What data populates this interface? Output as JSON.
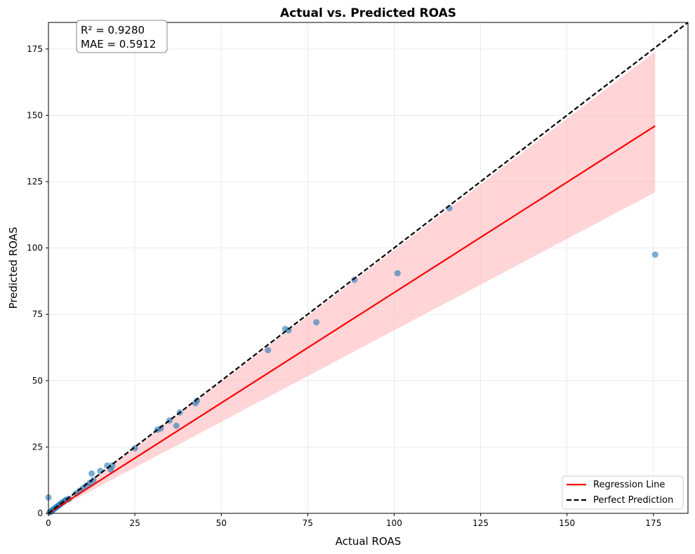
{
  "chart_data": {
    "type": "scatter",
    "title": "Actual vs. Predicted ROAS",
    "xlabel": "Actual ROAS",
    "ylabel": "Predicted ROAS",
    "xlim": [
      0,
      185
    ],
    "ylim": [
      0,
      185
    ],
    "xticks": [
      0,
      25,
      50,
      75,
      100,
      125,
      150,
      175
    ],
    "yticks": [
      0,
      25,
      50,
      75,
      100,
      125,
      150,
      175
    ],
    "grid": true,
    "legend_position": "lower-right",
    "stats": {
      "r2": "R² = 0.9280",
      "mae": "MAE = 0.5912"
    },
    "points": {
      "name": "",
      "color": "#1f77b4",
      "x": [
        0.0,
        0.3,
        0.6,
        0.9,
        1.2,
        1.5,
        1.8,
        2.1,
        2.4,
        2.7,
        3.0,
        3.3,
        3.6,
        3.9,
        4.2,
        4.5,
        5.0,
        5.5,
        6.0,
        8.0,
        9.0,
        10.0,
        11.0,
        12.0,
        12.5,
        13.0,
        15.0,
        17.0,
        18.0,
        18.5,
        25.0,
        31.5,
        32.5,
        35.0,
        37.0,
        38.0,
        42.5,
        43.0,
        63.5,
        68.5,
        69.5,
        77.5,
        88.5,
        101.0,
        116.0,
        175.5
      ],
      "y": [
        6.0,
        0.3,
        0.6,
        0.9,
        1.2,
        1.5,
        1.8,
        2.1,
        2.4,
        2.7,
        3.0,
        3.3,
        3.6,
        3.9,
        4.2,
        4.5,
        5.0,
        5.2,
        5.5,
        7.5,
        8.5,
        9.5,
        10.5,
        11.5,
        15.0,
        12.5,
        16.0,
        18.0,
        16.5,
        18.0,
        24.5,
        31.5,
        32.0,
        35.0,
        33.0,
        38.0,
        41.5,
        42.5,
        61.5,
        69.5,
        69.0,
        72.0,
        88.0,
        90.5,
        115.0,
        97.5
      ]
    },
    "regression": {
      "name": "Regression Line",
      "color": "#ff0000",
      "x": [
        0,
        175.5
      ],
      "y": [
        0,
        146
      ]
    },
    "confidence_band": {
      "color": "#ffb3b8",
      "x": [
        0,
        175.5
      ],
      "upper": [
        0,
        174
      ],
      "lower": [
        0,
        121
      ]
    },
    "perfect": {
      "name": "Perfect Prediction",
      "color": "#000000",
      "x": [
        0,
        185
      ],
      "y": [
        0,
        185
      ]
    }
  }
}
